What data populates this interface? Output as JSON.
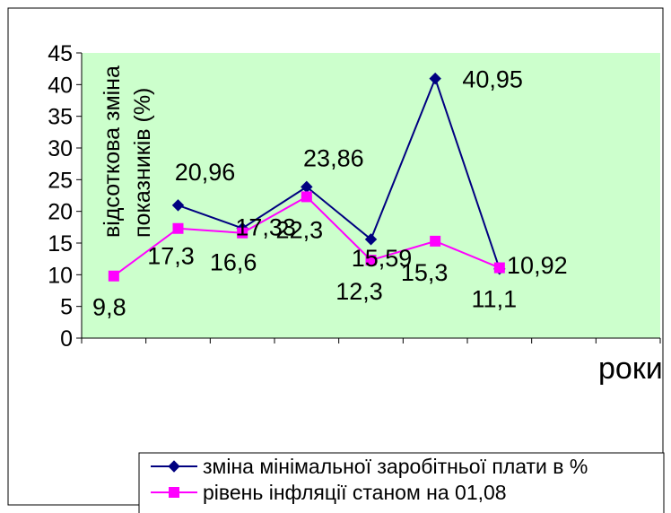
{
  "chart_data": {
    "type": "line",
    "categories": [
      "",
      "",
      "",
      "",
      "",
      "",
      "",
      "",
      ""
    ],
    "x_count": 9,
    "ylim": [
      0,
      45
    ],
    "yticks": [
      "0",
      "5",
      "10",
      "15",
      "20",
      "25",
      "30",
      "35",
      "40",
      "45"
    ],
    "xlabel": "роки",
    "ylabel_lines": [
      "відсоткова зміна",
      "показників (%)"
    ],
    "plot_background": "#ccffcc",
    "grid": false,
    "legend_position": "bottom",
    "series": [
      {
        "name": "зміна мінімальної заробітньої плати в %",
        "color": "#000080",
        "marker": "diamond",
        "points": [
          {
            "i": 1,
            "y": 20.96,
            "label": "20,96"
          },
          {
            "i": 2,
            "y": 17.33,
            "label": "17,33"
          },
          {
            "i": 3,
            "y": 23.86,
            "label": "23,86"
          },
          {
            "i": 4,
            "y": 15.59,
            "label": "15,59"
          },
          {
            "i": 5,
            "y": 40.95,
            "label": "40,95"
          },
          {
            "i": 6,
            "y": 10.92,
            "label": "10,92"
          }
        ]
      },
      {
        "name": "рівень інфляції станом на 01,08",
        "color": "#ff00ff",
        "marker": "square",
        "points": [
          {
            "i": 0,
            "y": 9.8,
            "label": "9,8"
          },
          {
            "i": 1,
            "y": 17.3,
            "label": "17,3"
          },
          {
            "i": 2,
            "y": 16.6,
            "label": "16,6"
          },
          {
            "i": 3,
            "y": 22.3,
            "label": "22,3"
          },
          {
            "i": 4,
            "y": 12.3,
            "label": "12,3"
          },
          {
            "i": 5,
            "y": 15.3,
            "label": "15,3"
          },
          {
            "i": 6,
            "y": 11.1,
            "label": "11,1"
          }
        ]
      }
    ]
  }
}
